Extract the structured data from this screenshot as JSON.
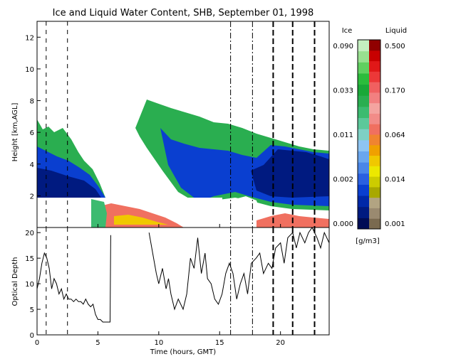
{
  "chart_data": [
    {
      "type": "heatmap",
      "title": "Ice and Liquid Water Content, SHB, September 01, 1998",
      "xlabel": "",
      "ylabel": "Height [km,AGL]",
      "xlim": [
        0,
        24
      ],
      "ylim": [
        0,
        13
      ],
      "xticks": [
        "0",
        "5",
        "10",
        "15",
        "20"
      ],
      "yticks": [
        "2",
        "4",
        "6",
        "8",
        "10",
        "12"
      ],
      "colorbar": {
        "ice_label": "Ice",
        "liquid_label": "Liquid",
        "units": "[g/m3]",
        "ice_ticks": [
          "0.090",
          "0.033",
          "0.011",
          "0.002",
          "0.000"
        ],
        "liquid_ticks": [
          "0.500",
          "0.170",
          "0.064",
          "0.014",
          "0.001"
        ],
        "ice_colors": [
          "#000c55",
          "#001a80",
          "#0028a8",
          "#0a3fd0",
          "#2a60e0",
          "#4a86e8",
          "#6aa6ee",
          "#8ec4f2",
          "#7ed0c4",
          "#5cc89a",
          "#3cbb70",
          "#2aae50",
          "#1aa838",
          "#2cbc3c",
          "#60d060",
          "#98e090",
          "#c4eec0"
        ],
        "liquid_colors": [
          "#7a6a50",
          "#9a8a70",
          "#b2a482",
          "#a8a800",
          "#cccc00",
          "#ece800",
          "#f0c800",
          "#f0a000",
          "#f08430",
          "#f07060",
          "#f28c88",
          "#f4a4a0",
          "#f28080",
          "#f06060",
          "#ec3838",
          "#e01818",
          "#c80000",
          "#900000"
        ],
        "region_colors": {
          "ice_thick": "#0a3fd0",
          "ice_core": "#001a80",
          "ice_edge": "#2aae50",
          "liquid_layer": "#f07060",
          "liquid_core": "#f0c800"
        }
      },
      "vertical_lines": [
        {
          "x": 0.75,
          "style": "dashed"
        },
        {
          "x": 2.5,
          "style": "dashed"
        },
        {
          "x": 15.9,
          "style": "dashdot"
        },
        {
          "x": 17.7,
          "style": "dashdot"
        },
        {
          "x": 19.4,
          "style": "bold-dashed"
        },
        {
          "x": 21.0,
          "style": "bold-dashed"
        },
        {
          "x": 22.8,
          "style": "bold-dashed"
        }
      ]
    },
    {
      "type": "line",
      "title": "",
      "xlabel": "Time (hours, GMT)",
      "ylabel": "Optical Depth",
      "xlim": [
        0,
        24
      ],
      "ylim": [
        0,
        21
      ],
      "xticks": [
        "0",
        "5",
        "10",
        "15",
        "20"
      ],
      "yticks": [
        "0",
        "5",
        "10",
        "15",
        "20"
      ],
      "series": [
        {
          "x": [
            0.0,
            0.2,
            0.4,
            0.6,
            0.8,
            1.0,
            1.2,
            1.4,
            1.6,
            1.8,
            2.0,
            2.2,
            2.4,
            2.6,
            2.8,
            3.0,
            3.2,
            3.4,
            3.6,
            3.8,
            4.0,
            4.2,
            4.4,
            4.6,
            4.8,
            5.0,
            5.2,
            5.4,
            5.6,
            5.8,
            6.0,
            6.05
          ],
          "y": [
            9,
            11,
            14,
            16,
            15,
            13,
            9,
            11,
            10,
            8,
            9,
            7,
            8,
            7,
            7,
            6.5,
            7,
            6.5,
            6.5,
            6,
            7,
            6,
            5.5,
            6,
            4,
            3,
            3,
            2.5,
            2.5,
            2.5,
            2.5,
            19.5
          ]
        },
        {
          "x": [
            9.2,
            9.5,
            9.8,
            10.0,
            10.3,
            10.6,
            10.8,
            11.0,
            11.3,
            11.6,
            12.0,
            12.3,
            12.6,
            12.9,
            13.2,
            13.5,
            13.8,
            14.0,
            14.3,
            14.6,
            14.9,
            15.2,
            15.5,
            15.8,
            16.1,
            16.4,
            16.7,
            17.0,
            17.3,
            17.6,
            18.0,
            18.3,
            18.6,
            19.0,
            19.3,
            19.6,
            20.0,
            20.3,
            20.6,
            21.0,
            21.3,
            21.6,
            22.0,
            22.3,
            22.6,
            23.0,
            23.3,
            23.6,
            24.0
          ],
          "y": [
            20,
            16,
            12,
            10,
            13,
            9,
            11,
            8,
            5,
            7,
            5,
            8,
            15,
            13,
            19,
            12,
            16,
            11,
            10,
            7,
            6,
            8,
            12,
            14,
            12,
            7,
            10,
            12,
            8,
            14,
            15,
            16,
            12,
            14,
            13,
            17,
            18,
            14,
            19,
            20,
            17,
            20,
            18,
            20,
            21,
            19,
            17,
            20,
            18
          ]
        }
      ]
    }
  ]
}
